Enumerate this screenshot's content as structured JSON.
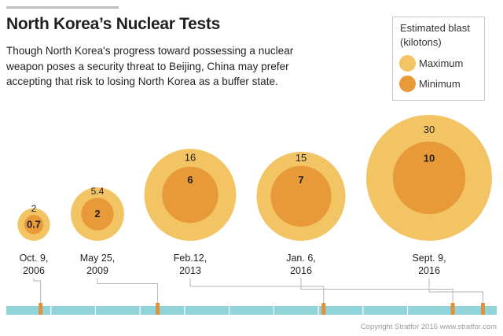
{
  "title": "North Korea’s Nuclear Tests",
  "subtitle": "Though North Korea's progress toward possessing a nuclear weapon poses a security threat to Beijing, China may prefer accepting that risk to losing North Korea as a buffer state.",
  "legend": {
    "title_line1": "Estimated blast",
    "title_line2": "(kilotons)",
    "maximum_label": "Maximum",
    "minimum_label": "Minimum"
  },
  "copyright": "Copyright Stratfor 2016   www.stratfor.com",
  "colors": {
    "maximum": "#f2c464",
    "minimum": "#e99a38",
    "timeline": "#90d3d9",
    "timeline_tick": "#ffffff",
    "marker": "#e0913a",
    "connector": "#b5b5b5"
  },
  "chart_data": {
    "type": "bubble-timeline",
    "series": [
      {
        "name": "Maximum",
        "values": [
          2,
          5.4,
          16,
          15,
          30
        ]
      },
      {
        "name": "Minimum",
        "values": [
          0.7,
          2,
          6,
          7,
          10
        ]
      }
    ],
    "tests": [
      {
        "date_line1": "Oct. 9,",
        "date_line2": "2006",
        "date": "2006-10-09",
        "maximum": 2,
        "minimum": 0.7,
        "max_label": "2",
        "min_label": "0.7"
      },
      {
        "date_line1": "May 25,",
        "date_line2": "2009",
        "date": "2009-05-25",
        "maximum": 5.4,
        "minimum": 2,
        "max_label": "5.4",
        "min_label": "2"
      },
      {
        "date_line1": "Feb.12,",
        "date_line2": "2013",
        "date": "2013-02-12",
        "maximum": 16,
        "minimum": 6,
        "max_label": "16",
        "min_label": "6"
      },
      {
        "date_line1": "Jan. 6,",
        "date_line2": "2016",
        "date": "2016-01-06",
        "maximum": 15,
        "minimum": 7,
        "max_label": "15",
        "min_label": "7"
      },
      {
        "date_line1": "Sept. 9,",
        "date_line2": "2016",
        "date": "2016-09-09",
        "maximum": 30,
        "minimum": 10,
        "max_label": "30",
        "min_label": "10"
      }
    ],
    "timeline_range": [
      "2006-01-01",
      "2016-12-31"
    ],
    "timeline_segments": 11
  }
}
